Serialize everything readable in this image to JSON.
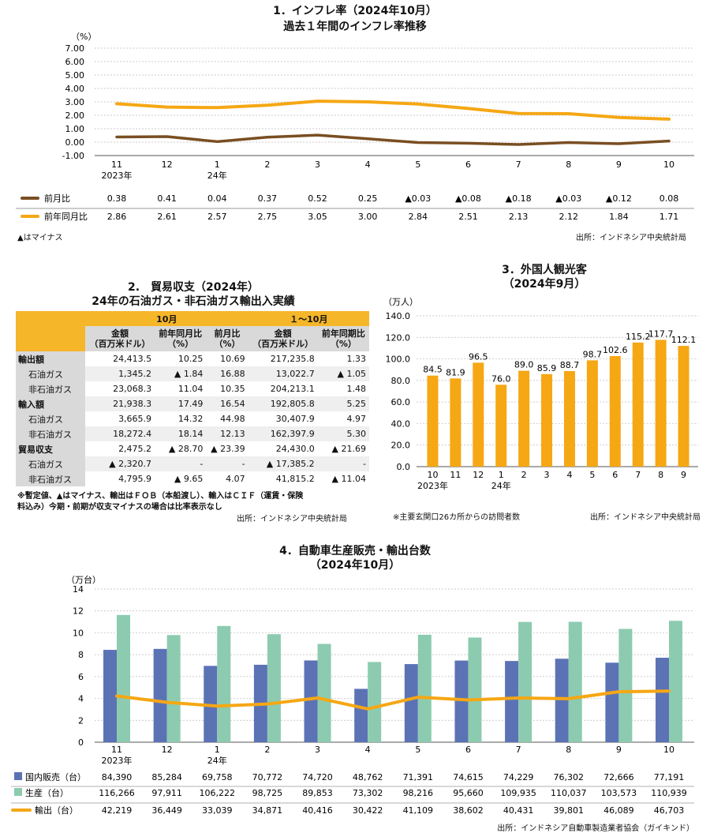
{
  "inflation": {
    "title": "1．インフレ率（2024年10月）",
    "subtitle": "過去１年間のインフレ率推移",
    "unit": "（%）",
    "note": "▲はマイナス",
    "source": "出所：インドネシア中央統計局",
    "colors": {
      "mom": "#7a4e22",
      "yoy": "#f5a714"
    }
  },
  "trade": {
    "title": "2.　貿易収支（2024年）",
    "subtitle": "24年の石油ガス・非石油ガス輸出入実績",
    "period1": "10月",
    "period2": "１～10月",
    "headers": [
      "金額\n（百万米ドル）",
      "前年同月比\n（%）",
      "前月比\n（%）",
      "金額\n（百万米ドル）",
      "前年同期比\n（%）"
    ],
    "rows": [
      {
        "label": "輸出額",
        "main": true,
        "v": [
          "24,413.5",
          "10.25",
          "10.69",
          "217,235.8",
          "1.33"
        ]
      },
      {
        "label": "石油ガス",
        "main": false,
        "v": [
          "1,345.2",
          "▲ 1.84",
          "16.88",
          "13,022.7",
          "▲ 1.05"
        ]
      },
      {
        "label": "非石油ガス",
        "main": false,
        "v": [
          "23,068.3",
          "11.04",
          "10.35",
          "204,213.1",
          "1.48"
        ]
      },
      {
        "label": "輸入額",
        "main": true,
        "v": [
          "21,938.3",
          "17.49",
          "16.54",
          "192,805.8",
          "5.25"
        ]
      },
      {
        "label": "石油ガス",
        "main": false,
        "v": [
          "3,665.9",
          "14.32",
          "44.98",
          "30,407.9",
          "4.97"
        ]
      },
      {
        "label": "非石油ガス",
        "main": false,
        "v": [
          "18,272.4",
          "18.14",
          "12.13",
          "162,397.9",
          "5.30"
        ]
      },
      {
        "label": "貿易収支",
        "main": true,
        "v": [
          "2,475.2",
          "▲ 28.70",
          "▲ 23.39",
          "24,430.0",
          "▲ 21.69"
        ]
      },
      {
        "label": "石油ガス",
        "main": false,
        "v": [
          "▲ 2,320.7",
          "-",
          "-",
          "▲ 17,385.2",
          "-"
        ]
      },
      {
        "label": "非石油ガス",
        "main": false,
        "v": [
          "4,795.9",
          "▲ 9.65",
          "4.07",
          "41,815.2",
          "▲ 11.04"
        ]
      }
    ],
    "note1": "※暫定値、▲はマイナス、輸出はＦＯＢ（本船渡し）、輸入はＣＩＦ（運賃・保険",
    "note2": "料込み）今期・前期が収支マイナスの場合は比率表示なし",
    "source": "出所：インドネシア中央統計局"
  },
  "tourists": {
    "title": "3．外国人観光客",
    "subtitle": "（2024年9月）",
    "unit": "（万人）",
    "note": "※主要玄関口26カ所からの訪問者数",
    "source": "出所：インドネシア中央統計局",
    "color": "#f5a714"
  },
  "auto": {
    "title": "4．自動車生産販売・輸出台数",
    "subtitle": "（2024年10月）",
    "unit": "（万台）",
    "source": "出所：インドネシア自動車製造業者協会（ガイキンド）",
    "colors": {
      "domestic": "#5b73b5",
      "production": "#8ccbb0",
      "export": "#f5a714"
    }
  },
  "chart_data": [
    {
      "type": "line",
      "categories": [
        "11",
        "12",
        "1",
        "2",
        "3",
        "4",
        "5",
        "6",
        "7",
        "8",
        "9",
        "10"
      ],
      "category_sublabels": [
        "2023年",
        "",
        "24年",
        "",
        "",
        "",
        "",
        "",
        "",
        "",
        "",
        ""
      ],
      "ylim": [
        -1.0,
        7.0
      ],
      "yticks": [
        "7.00",
        "6.00",
        "5.00",
        "4.00",
        "3.00",
        "2.00",
        "1.00",
        "0.00",
        "-1.00"
      ],
      "grid": true,
      "series": [
        {
          "name": "前月比",
          "values": [
            0.38,
            0.41,
            0.04,
            0.37,
            0.52,
            0.25,
            -0.03,
            -0.08,
            -0.18,
            -0.03,
            -0.12,
            0.08
          ],
          "labels": [
            "0.38",
            "0.41",
            "0.04",
            "0.37",
            "0.52",
            "0.25",
            "▲0.03",
            "▲0.08",
            "▲0.18",
            "▲0.03",
            "▲0.12",
            "0.08"
          ]
        },
        {
          "name": "前年同月比",
          "values": [
            2.86,
            2.61,
            2.57,
            2.75,
            3.05,
            3.0,
            2.84,
            2.51,
            2.13,
            2.12,
            1.84,
            1.71
          ],
          "labels": [
            "2.86",
            "2.61",
            "2.57",
            "2.75",
            "3.05",
            "3.00",
            "2.84",
            "2.51",
            "2.13",
            "2.12",
            "1.84",
            "1.71"
          ]
        }
      ]
    },
    {
      "type": "bar",
      "categories": [
        "10",
        "11",
        "12",
        "1",
        "2",
        "3",
        "4",
        "5",
        "6",
        "7",
        "8",
        "9"
      ],
      "category_sublabels": [
        "2023年",
        "",
        "",
        "24年",
        "",
        "",
        "",
        "",
        "",
        "",
        "",
        ""
      ],
      "values": [
        84.5,
        81.9,
        96.5,
        76.0,
        89.0,
        85.9,
        88.7,
        98.7,
        102.6,
        115.2,
        117.7,
        112.1
      ],
      "labels": [
        "84.5",
        "81.9",
        "96.5",
        "76.0",
        "89.0",
        "85.9",
        "88.7",
        "98.7",
        "102.6",
        "115.2",
        "117.7",
        "112.1"
      ],
      "ylim": [
        0,
        140
      ],
      "yticks": [
        "140.0",
        "120.0",
        "100.0",
        "80.0",
        "60.0",
        "40.0",
        "20.0",
        "0.0"
      ],
      "grid": true
    },
    {
      "type": "bar",
      "categories": [
        "11",
        "12",
        "1",
        "2",
        "3",
        "4",
        "5",
        "6",
        "7",
        "8",
        "9",
        "10"
      ],
      "category_sublabels": [
        "2023年",
        "",
        "24年",
        "",
        "",
        "",
        "",
        "",
        "",
        "",
        "",
        ""
      ],
      "ylim": [
        0,
        14
      ],
      "yticks": [
        "14",
        "12",
        "10",
        "8",
        "6",
        "4",
        "2",
        "0"
      ],
      "grid": true,
      "series": [
        {
          "name": "国内販売（台）",
          "type": "bar",
          "values": [
            84390,
            85284,
            69758,
            70772,
            74720,
            48762,
            71391,
            74615,
            74229,
            76302,
            72666,
            77191
          ],
          "labels": [
            "84,390",
            "85,284",
            "69,758",
            "70,772",
            "74,720",
            "48,762",
            "71,391",
            "74,615",
            "74,229",
            "76,302",
            "72,666",
            "77,191"
          ]
        },
        {
          "name": "生産（台）",
          "type": "bar",
          "values": [
            116266,
            97911,
            106222,
            98725,
            89853,
            73302,
            98216,
            95660,
            109935,
            110037,
            103573,
            110939
          ],
          "labels": [
            "116,266",
            "97,911",
            "106,222",
            "98,725",
            "89,853",
            "73,302",
            "98,216",
            "95,660",
            "109,935",
            "110,037",
            "103,573",
            "110,939"
          ]
        },
        {
          "name": "輸出（台）",
          "type": "line",
          "values": [
            42219,
            36449,
            33039,
            34871,
            40416,
            30422,
            41109,
            38602,
            40431,
            39801,
            46089,
            46703
          ],
          "labels": [
            "42,219",
            "36,449",
            "33,039",
            "34,871",
            "40,416",
            "30,422",
            "41,109",
            "38,602",
            "40,431",
            "39,801",
            "46,089",
            "46,703"
          ]
        }
      ]
    }
  ]
}
